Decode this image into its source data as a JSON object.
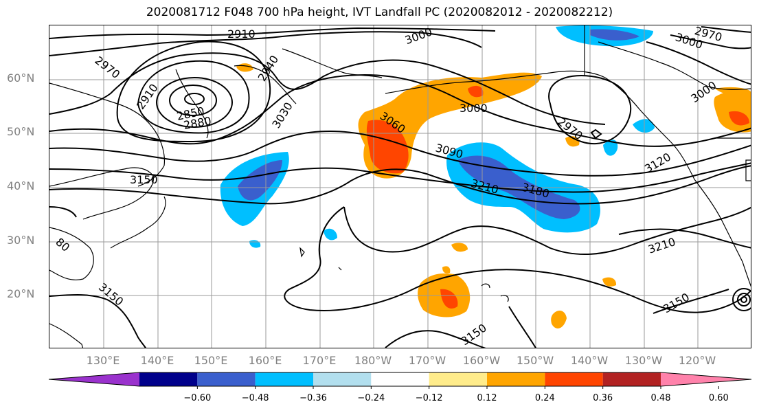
{
  "title": "2020081712 F048 700 hPa height, IVT Landfall PC (2020082012 - 2020082212)",
  "map": {
    "lat_labels": [
      "60°N",
      "50°N",
      "40°N",
      "30°N",
      "20°N"
    ],
    "lon_labels": [
      "130°E",
      "140°E",
      "150°E",
      "160°E",
      "170°E",
      "180°W",
      "170°W",
      "160°W",
      "150°W",
      "140°W",
      "130°W",
      "120°W"
    ],
    "contour_labels": [
      "2910",
      "3000",
      "2970",
      "3000",
      "2940",
      "2970",
      "2910",
      "3030",
      "2850",
      "2880",
      "3000",
      "3000",
      "3060",
      "2970",
      "3090",
      "3120",
      "3150",
      "3210",
      "3180",
      "80",
      "3210",
      "3150",
      "3150",
      "3150"
    ]
  },
  "colorbar": {
    "colors": [
      "#9a32cd",
      "#00008b",
      "#3a5fcd",
      "#00bfff",
      "#b2dfee",
      "#ffffff",
      "#ffec8b",
      "#ffa500",
      "#ff4500",
      "#b22222",
      "#ff82ab"
    ],
    "ticks": [
      "−0.60",
      "−0.48",
      "−0.36",
      "−0.24",
      "−0.12",
      "0.12",
      "0.24",
      "0.36",
      "0.48",
      "0.60"
    ]
  }
}
